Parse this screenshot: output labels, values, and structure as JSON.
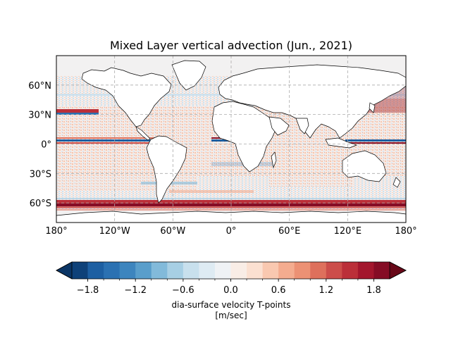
{
  "figure": {
    "title": "Mixed Layer vertical advection (Jun., 2021)"
  },
  "map": {
    "projection": "PlateCarree",
    "lon_range": [
      -180,
      180
    ],
    "lat_range": [
      -80,
      90
    ],
    "gridlines": true,
    "gridline_style": "dashed",
    "colors": {
      "land": "#ffffff",
      "coastline": "#000000",
      "gridline": "#aaaaaa",
      "high_latitude_near_zero": "#f2f1f1"
    },
    "lon_ticks": [
      "180°",
      "120°W",
      "60°W",
      "0°",
      "60°E",
      "120°E",
      "180°"
    ],
    "lat_ticks": [
      "60°N",
      "30°N",
      "0°",
      "30°S",
      "60°S"
    ]
  },
  "colorbar": {
    "label": "dia-surface velocity T-points",
    "units": "[m/sec]",
    "range": [
      -2.0,
      2.0
    ],
    "extend": "both",
    "orientation": "horizontal",
    "tick_labels": [
      "−1.8",
      "−1.2",
      "−0.6",
      "0.0",
      "0.6",
      "1.2",
      "1.8"
    ],
    "colormap": "RdBu_r",
    "levels": [
      {
        "from": -2.0,
        "to": -1.8,
        "color": "#0e4179"
      },
      {
        "from": -1.8,
        "to": -1.6,
        "color": "#1d5fa2"
      },
      {
        "from": -1.6,
        "to": -1.4,
        "color": "#2b71b2"
      },
      {
        "from": -1.4,
        "to": -1.2,
        "color": "#3d85be"
      },
      {
        "from": -1.2,
        "to": -1.0,
        "color": "#599ecb"
      },
      {
        "from": -1.0,
        "to": -0.8,
        "color": "#82bada"
      },
      {
        "from": -0.8,
        "to": -0.6,
        "color": "#a7cfe4"
      },
      {
        "from": -0.6,
        "to": -0.4,
        "color": "#c8e0ed"
      },
      {
        "from": -0.4,
        "to": -0.2,
        "color": "#deebf3"
      },
      {
        "from": -0.2,
        "to": 0.0,
        "color": "#eff2f5"
      },
      {
        "from": 0.0,
        "to": 0.2,
        "color": "#f9ede6"
      },
      {
        "from": 0.2,
        "to": 0.4,
        "color": "#fbe0d1"
      },
      {
        "from": 0.4,
        "to": 0.6,
        "color": "#f9c8b0"
      },
      {
        "from": 0.6,
        "to": 0.8,
        "color": "#f4ac8f"
      },
      {
        "from": 0.8,
        "to": 1.0,
        "color": "#ec9174"
      },
      {
        "from": 1.0,
        "to": 1.2,
        "color": "#de705c"
      },
      {
        "from": 1.2,
        "to": 1.4,
        "color": "#cc4d4a"
      },
      {
        "from": 1.4,
        "to": 1.6,
        "color": "#bb2f39"
      },
      {
        "from": 1.6,
        "to": 1.8,
        "color": "#a3162d"
      },
      {
        "from": 1.8,
        "to": 2.0,
        "color": "#850c25"
      }
    ],
    "under_color": "#0b3565",
    "over_color": "#680818"
  }
}
